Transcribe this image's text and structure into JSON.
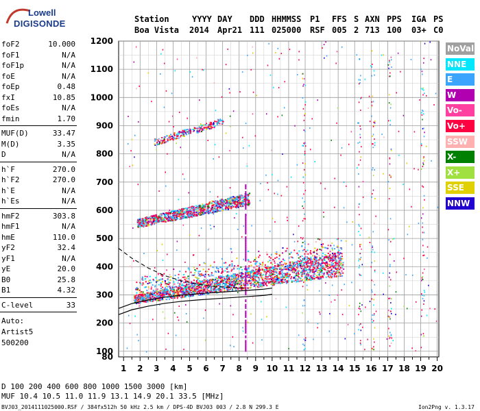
{
  "logo": {
    "top": "Lowell",
    "main": "DIGISONDE"
  },
  "header": {
    "row1": [
      {
        "text": "Station",
        "x": 0
      },
      {
        "text": "YYYY",
        "x": 84
      },
      {
        "text": "DAY",
        "x": 121
      },
      {
        "text": "DDD",
        "x": 168
      },
      {
        "text": "HHMMSS",
        "x": 200
      },
      {
        "text": "P1",
        "x": 256
      },
      {
        "text": "FFS",
        "x": 288
      },
      {
        "text": "S",
        "x": 320
      },
      {
        "text": "AXN",
        "x": 336
      },
      {
        "text": "PPS",
        "x": 368
      },
      {
        "text": "IGA",
        "x": 404
      },
      {
        "text": "PS",
        "x": 436
      }
    ],
    "row2": [
      {
        "text": "Boa Vista",
        "x": 0
      },
      {
        "text": "2014",
        "x": 80
      },
      {
        "text": "Apr21",
        "x": 121
      },
      {
        "text": "111",
        "x": 168
      },
      {
        "text": "025000",
        "x": 200
      },
      {
        "text": "RSF",
        "x": 256
      },
      {
        "text": "005",
        "x": 288
      },
      {
        "text": "2",
        "x": 320
      },
      {
        "text": "713",
        "x": 336
      },
      {
        "text": "100",
        "x": 368
      },
      {
        "text": "03+",
        "x": 404
      },
      {
        "text": "C0",
        "x": 436
      }
    ]
  },
  "params_group1": [
    {
      "k": "foF2",
      "v": "10.000"
    },
    {
      "k": "foF1",
      "v": "N/A"
    },
    {
      "k": "foF1p",
      "v": "N/A"
    },
    {
      "k": "foE",
      "v": "N/A"
    },
    {
      "k": "foEp",
      "v": "0.48"
    },
    {
      "k": "fxI",
      "v": "10.85"
    },
    {
      "k": "foEs",
      "v": "N/A"
    },
    {
      "k": "fmin",
      "v": "1.70"
    }
  ],
  "params_group2": [
    {
      "k": "MUF(D)",
      "v": "33.47"
    },
    {
      "k": "M(D)",
      "v": "3.35"
    },
    {
      "k": "D",
      "v": "N/A"
    }
  ],
  "params_group3": [
    {
      "k": "h`F",
      "v": "270.0"
    },
    {
      "k": "h`F2",
      "v": "270.0"
    },
    {
      "k": "h`E",
      "v": "N/A"
    },
    {
      "k": "h`Es",
      "v": "N/A"
    }
  ],
  "params_group4": [
    {
      "k": "hmF2",
      "v": "303.8"
    },
    {
      "k": "hmF1",
      "v": "N/A"
    },
    {
      "k": "hmE",
      "v": "110.0"
    },
    {
      "k": "yF2",
      "v": "32.4"
    },
    {
      "k": "yF1",
      "v": "N/A"
    },
    {
      "k": "yE",
      "v": "20.0"
    },
    {
      "k": "B0",
      "v": "25.8"
    },
    {
      "k": "B1",
      "v": "4.32"
    }
  ],
  "params_group5": [
    {
      "k": "C-level",
      "v": "33"
    }
  ],
  "auto": [
    "Auto:",
    "Artist5",
    "500200"
  ],
  "footer": {
    "d_row": "D     100  200  400  600  800 1000 1500 3000 [km]",
    "muf_row": "MUF  10.4 10.5 11.0 11.9 13.1 14.9 20.1 33.5 [MHz]",
    "file_info": "BVJ03_2014111025000.RSF / 384fx512h 50 kHz 2.5 km / DPS-4D BVJ03 003 / 2.8 N 299.3 E",
    "version": "Ion2Png v. 1.3.17"
  },
  "legend": [
    {
      "label": "NoVal",
      "color": "#a0a0a0"
    },
    {
      "label": "NNE",
      "color": "#00e8ff"
    },
    {
      "label": "E",
      "color": "#3aa4ff"
    },
    {
      "label": "W",
      "color": "#b000b0"
    },
    {
      "label": "Vo-",
      "color": "#ff40a0"
    },
    {
      "label": "Vo+",
      "color": "#ff0040"
    },
    {
      "label": "SSW",
      "color": "#ffb0b0"
    },
    {
      "label": "X-",
      "color": "#008000"
    },
    {
      "label": "X+",
      "color": "#a0e040"
    },
    {
      "label": "SSE",
      "color": "#e0d000"
    },
    {
      "label": "NNW",
      "color": "#2000d0"
    }
  ],
  "chart_data": {
    "type": "scatter",
    "title": "",
    "xlabel": "",
    "ylabel": "",
    "xlim": [
      0.7,
      20.1
    ],
    "ylim": [
      80,
      1200
    ],
    "x_ticks": [
      1,
      2,
      3,
      4,
      5,
      6,
      7,
      8,
      9,
      10,
      11,
      12,
      13,
      14,
      15,
      16,
      17,
      18,
      19,
      20
    ],
    "y_ticks": [
      80,
      100,
      200,
      300,
      400,
      500,
      600,
      700,
      800,
      900,
      1000,
      1100,
      1200
    ],
    "grid": true,
    "traces": [
      {
        "name": "F2 1-hop band",
        "x_range": [
          1.6,
          14.3
        ],
        "y_start": [
          270,
          300
        ],
        "y_end": [
          370,
          460
        ]
      },
      {
        "name": "F2 2-hop band",
        "x_range": [
          1.8,
          8.6
        ],
        "y_start": [
          540,
          570
        ],
        "y_end": [
          620,
          665
        ]
      },
      {
        "name": "F2 3-hop band",
        "x_range": [
          2.8,
          7.0
        ],
        "y_start": [
          830,
          855
        ],
        "y_end": [
          905,
          930
        ]
      }
    ],
    "profile_line": {
      "x": [
        0.7,
        1.5,
        2.5,
        3.5,
        4.5,
        5.5,
        6.5,
        7.5,
        8.5,
        9.5,
        10.0
      ],
      "y": [
        230,
        247,
        260,
        270,
        277,
        282,
        286,
        290,
        294,
        298,
        302
      ]
    },
    "dashed_line": {
      "x": [
        0.7,
        1.5,
        2.5,
        3.5,
        4.5,
        5.5,
        6.5,
        7.5,
        8.5
      ],
      "y": [
        465,
        430,
        395,
        368,
        350,
        338,
        330,
        326,
        324
      ]
    },
    "vertical_trace": {
      "x": 8.4,
      "y_range": [
        100,
        700
      ]
    }
  }
}
